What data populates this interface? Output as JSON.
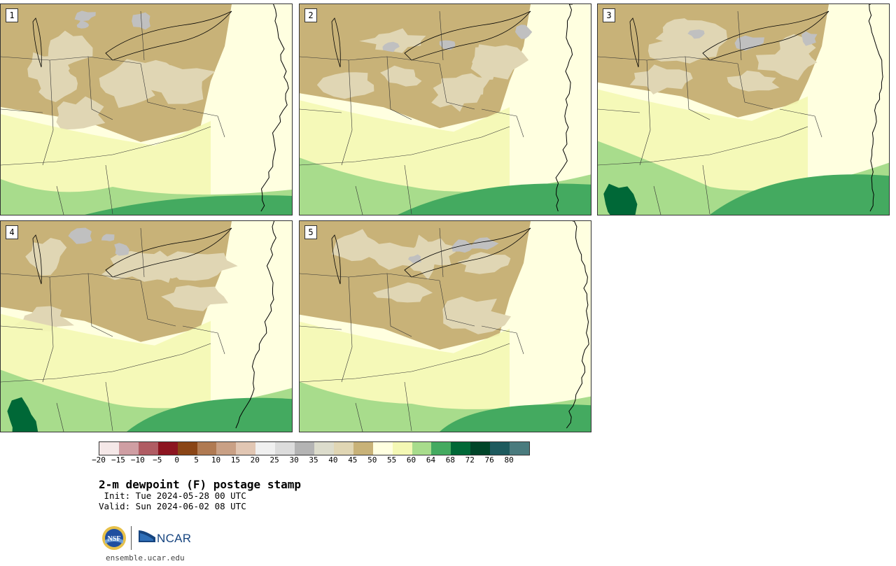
{
  "panels": [
    {
      "label": "1",
      "moisture": 0.3
    },
    {
      "label": "2",
      "moisture": 0.48
    },
    {
      "label": "3",
      "moisture": 0.62
    },
    {
      "label": "4",
      "moisture": 0.52
    },
    {
      "label": "5",
      "moisture": 0.42
    }
  ],
  "colorbar": {
    "colors": [
      "#f5e8e8",
      "#cf9ea3",
      "#b05c63",
      "#8c1520",
      "#8a4516",
      "#b07a52",
      "#c9a085",
      "#e1c6b3",
      "#f0f0f0",
      "#dcdcdc",
      "#b4b4b4",
      "#dcdccc",
      "#e0d6b4",
      "#c8b278",
      "#ffffe0",
      "#f4f8b4",
      "#a8dc8c",
      "#44aa60",
      "#006837",
      "#004529",
      "#1d5a5e",
      "#4a7b7e"
    ],
    "ticks": [
      "−20",
      "−15",
      "−10",
      "−5",
      "0",
      "5",
      "10",
      "15",
      "20",
      "25",
      "30",
      "35",
      "40",
      "45",
      "50",
      "55",
      "60",
      "64",
      "68",
      "72",
      "76",
      "80"
    ]
  },
  "title": "2-m dewpoint (F) postage stamp",
  "init": " Init: Tue 2024-05-28 00 UTC",
  "valid": "Valid: Sun 2024-06-02 08 UTC",
  "logos": {
    "nsf": "NSF",
    "ncar": "NCAR"
  },
  "site": "ensemble.ucar.edu"
}
